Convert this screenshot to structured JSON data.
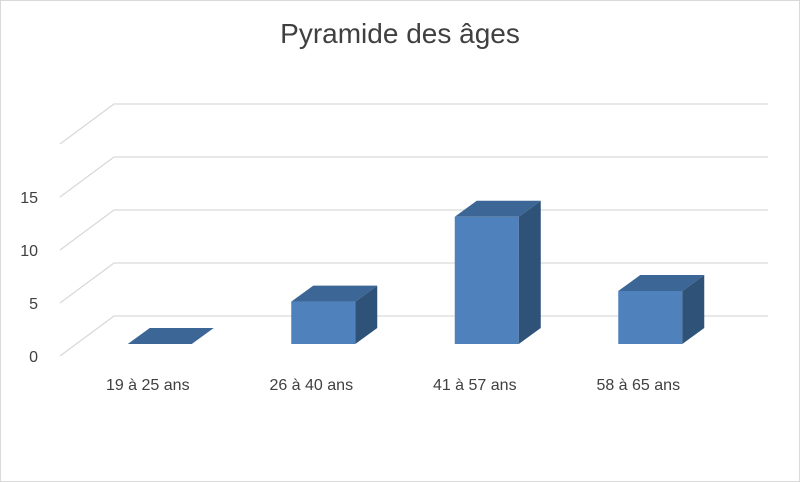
{
  "chart_data": {
    "type": "bar",
    "title": "Pyramide des âges",
    "xlabel": "",
    "ylabel": "",
    "categories": [
      "19 à 25 ans",
      "26 à 40 ans",
      "41 à 57 ans",
      "58 à 65 ans"
    ],
    "values": [
      0,
      4,
      12,
      5
    ],
    "ylim": [
      0,
      20
    ],
    "yticks": [
      0,
      5,
      10,
      15
    ],
    "grid": true,
    "legend": "none",
    "style": "3d-clustered-column",
    "colors": {
      "front": "#4f81bd",
      "side": "#2f5278",
      "top": "#3b6696",
      "grid": "#d9d9d9",
      "text": "#404040"
    }
  }
}
